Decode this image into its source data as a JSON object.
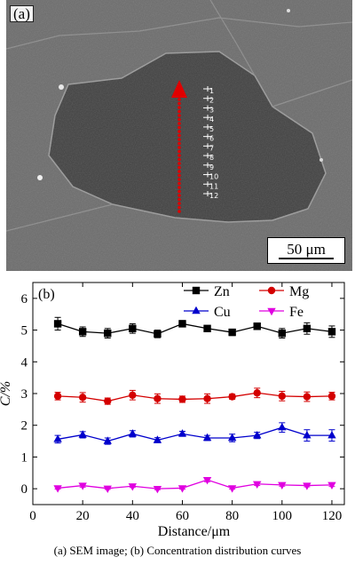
{
  "panel_a": {
    "tag": "(a)",
    "scale_label": "50 μm",
    "point_labels": [
      "1",
      "2",
      "3",
      "4",
      "5",
      "6",
      "7",
      "8",
      "9",
      "10",
      "11",
      "12"
    ]
  },
  "chart_data": {
    "type": "line",
    "tag": "(b)",
    "xlabel": "Distance/μm",
    "ylabel": "C/%",
    "xlim": [
      0,
      125
    ],
    "ylim": [
      -0.5,
      6.5
    ],
    "xticks": [
      0,
      20,
      40,
      60,
      80,
      100,
      120
    ],
    "yticks": [
      0,
      1,
      2,
      3,
      4,
      5,
      6
    ],
    "x": [
      10,
      20,
      30,
      40,
      50,
      60,
      70,
      80,
      90,
      100,
      110,
      120
    ],
    "legend_position": "top",
    "series": [
      {
        "name": "Zn",
        "color": "#000000",
        "marker": "square",
        "values": [
          5.2,
          4.95,
          4.9,
          5.05,
          4.88,
          5.2,
          5.05,
          4.93,
          5.12,
          4.9,
          5.05,
          4.95
        ],
        "errors": [
          0.2,
          0.15,
          0.15,
          0.15,
          0.12,
          0.1,
          0.08,
          0.1,
          0.1,
          0.15,
          0.18,
          0.18
        ]
      },
      {
        "name": "Mg",
        "color": "#d40000",
        "marker": "circle",
        "values": [
          2.92,
          2.88,
          2.76,
          2.95,
          2.84,
          2.82,
          2.84,
          2.9,
          3.02,
          2.92,
          2.9,
          2.92
        ],
        "errors": [
          0.12,
          0.15,
          0.1,
          0.15,
          0.15,
          0.1,
          0.15,
          0.08,
          0.15,
          0.15,
          0.15,
          0.12
        ]
      },
      {
        "name": "Cu",
        "color": "#0000cc",
        "marker": "triangle",
        "values": [
          1.56,
          1.7,
          1.5,
          1.73,
          1.53,
          1.73,
          1.6,
          1.6,
          1.68,
          1.93,
          1.68,
          1.68
        ],
        "errors": [
          0.12,
          0.1,
          0.1,
          0.1,
          0.08,
          0.08,
          0.08,
          0.12,
          0.1,
          0.15,
          0.18,
          0.18
        ]
      },
      {
        "name": "Fe",
        "color": "#e000e0",
        "marker": "triangle-down",
        "values": [
          0.02,
          0.1,
          0.01,
          0.08,
          0.0,
          0.02,
          0.28,
          0.02,
          0.15,
          0.12,
          0.1,
          0.12
        ],
        "errors": [
          0.03,
          0.05,
          0.03,
          0.04,
          0.03,
          0.03,
          0.06,
          0.03,
          0.05,
          0.04,
          0.04,
          0.05
        ]
      }
    ]
  },
  "caption": "(a) SEM image; (b) Concentration distribution curves"
}
